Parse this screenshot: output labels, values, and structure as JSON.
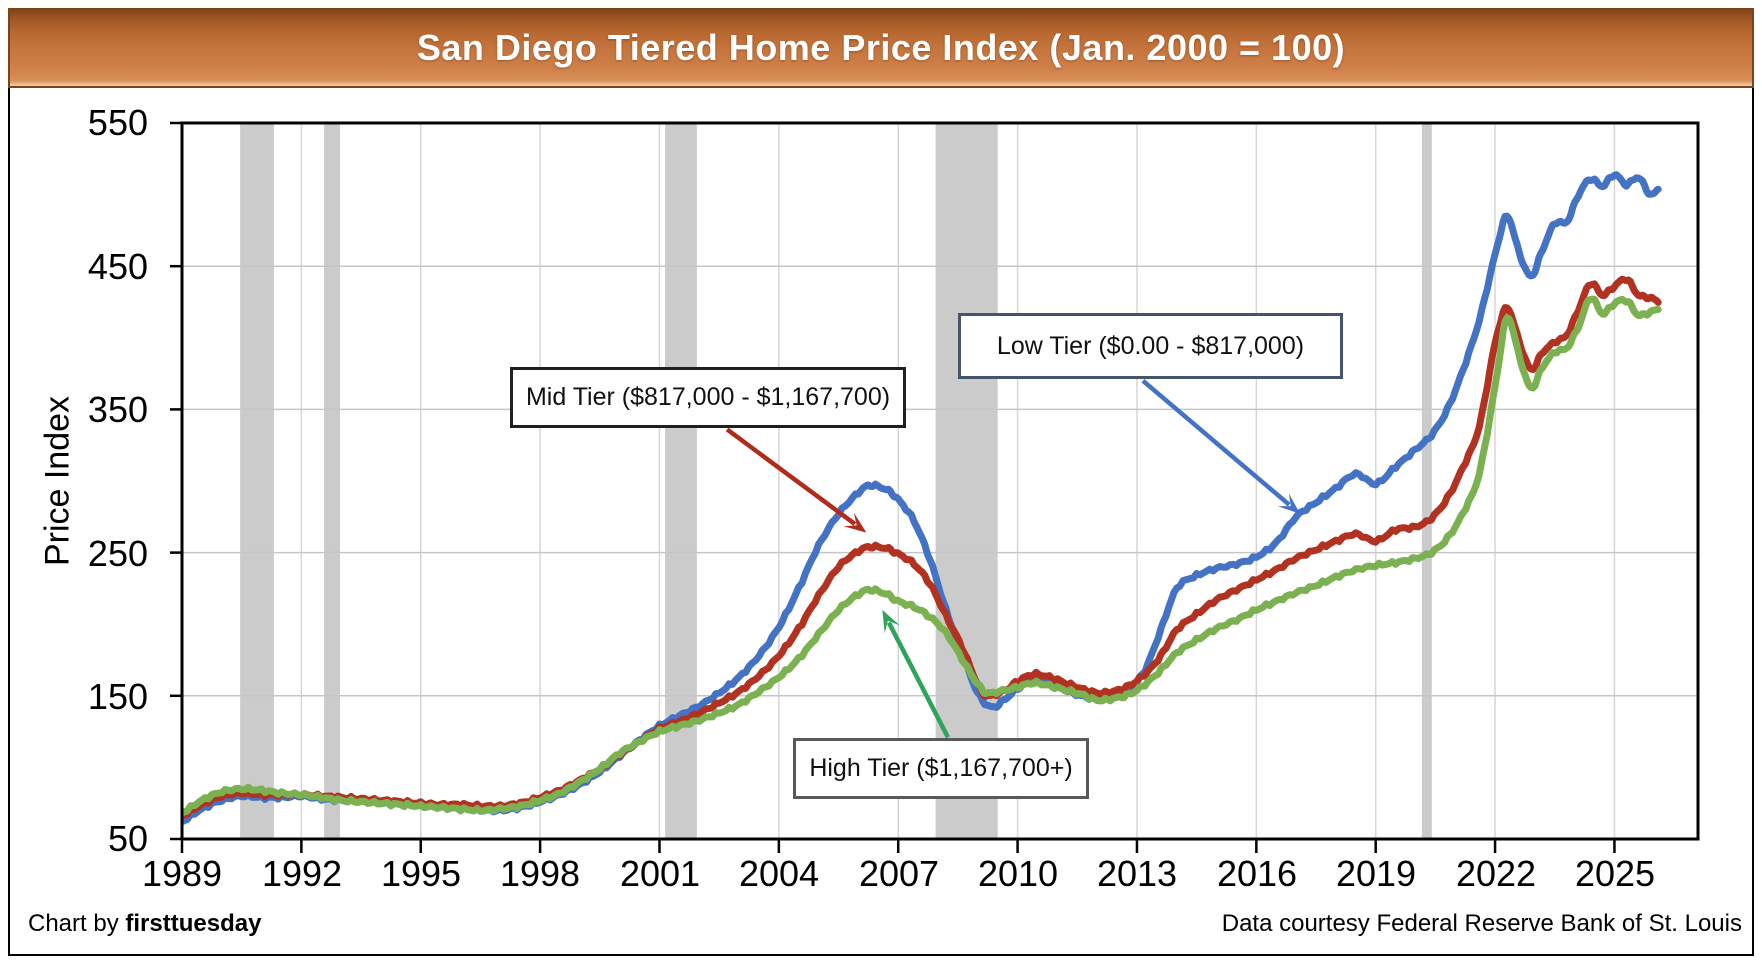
{
  "title": "San Diego Tiered Home Price Index (Jan. 2000 = 100)",
  "footer": {
    "left_prefix": "Chart by ",
    "left_brand": "firsttuesday",
    "right": "Data courtesy Federal Reserve Bank of St. Louis"
  },
  "chart_data": {
    "type": "line",
    "title": "San Diego Tiered Home Price Index (Jan. 2000 = 100)",
    "xlabel": "",
    "ylabel": "Price Index",
    "xlim": [
      1989,
      2027.1
    ],
    "ylim": [
      50,
      550
    ],
    "x_ticks": [
      1989,
      1992,
      1995,
      1998,
      2001,
      2004,
      2007,
      2010,
      2013,
      2016,
      2019,
      2022,
      2025
    ],
    "y_ticks": [
      50,
      150,
      250,
      350,
      450,
      550
    ],
    "grid": true,
    "legend_position": "annotation-callouts",
    "recession_bands": [
      [
        1990.46,
        1991.31
      ],
      [
        1992.57,
        1992.97
      ],
      [
        2001.14,
        2001.94
      ],
      [
        2007.94,
        2009.5
      ],
      [
        2020.16,
        2020.41
      ]
    ],
    "colors": {
      "band": "#CBCBCB",
      "grid_h": "#C6C6C6",
      "grid_v": "#D6D6D6",
      "axis": "#000000"
    },
    "series": [
      {
        "name": "Low Tier ($0.00 - $817,000)",
        "color": "#4472C4",
        "points": [
          [
            1989,
            62
          ],
          [
            1989.5,
            71
          ],
          [
            1990,
            77
          ],
          [
            1990.5,
            80
          ],
          [
            1991,
            79
          ],
          [
            1991.5,
            79
          ],
          [
            1992,
            80
          ],
          [
            1992.5,
            78
          ],
          [
            1993,
            77
          ],
          [
            1993.5,
            76
          ],
          [
            1994,
            75
          ],
          [
            1994.5,
            74
          ],
          [
            1995,
            73
          ],
          [
            1995.5,
            72
          ],
          [
            1996,
            71
          ],
          [
            1996.5,
            70
          ],
          [
            1997,
            70
          ],
          [
            1997.5,
            72
          ],
          [
            1998,
            76
          ],
          [
            1998.5,
            81
          ],
          [
            1999,
            88
          ],
          [
            1999.5,
            97
          ],
          [
            2000,
            108
          ],
          [
            2000.5,
            119
          ],
          [
            2001,
            129
          ],
          [
            2001.5,
            136
          ],
          [
            2002,
            143
          ],
          [
            2002.5,
            152
          ],
          [
            2003,
            163
          ],
          [
            2003.5,
            178
          ],
          [
            2004,
            198
          ],
          [
            2004.5,
            225
          ],
          [
            2005,
            255
          ],
          [
            2005.5,
            277
          ],
          [
            2006,
            292
          ],
          [
            2006.3,
            297
          ],
          [
            2006.7,
            294
          ],
          [
            2007,
            287
          ],
          [
            2007.4,
            272
          ],
          [
            2007.8,
            245
          ],
          [
            2008.2,
            210
          ],
          [
            2008.6,
            180
          ],
          [
            2009,
            152
          ],
          [
            2009.35,
            142
          ],
          [
            2009.7,
            148
          ],
          [
            2010,
            155
          ],
          [
            2010.4,
            161
          ],
          [
            2010.8,
            158
          ],
          [
            2011.2,
            154
          ],
          [
            2011.6,
            150
          ],
          [
            2012,
            148
          ],
          [
            2012.4,
            149
          ],
          [
            2012.8,
            155
          ],
          [
            2013.2,
            168
          ],
          [
            2013.6,
            196
          ],
          [
            2014,
            225
          ],
          [
            2014.5,
            234
          ],
          [
            2015,
            239
          ],
          [
            2015.5,
            242
          ],
          [
            2016,
            247
          ],
          [
            2016.5,
            257
          ],
          [
            2017,
            275
          ],
          [
            2017.5,
            285
          ],
          [
            2018,
            295
          ],
          [
            2018.5,
            305
          ],
          [
            2019,
            298
          ],
          [
            2019.5,
            310
          ],
          [
            2020,
            322
          ],
          [
            2020.4,
            332
          ],
          [
            2020.8,
            350
          ],
          [
            2021.2,
            378
          ],
          [
            2021.6,
            412
          ],
          [
            2022,
            458
          ],
          [
            2022.3,
            485
          ],
          [
            2022.6,
            460
          ],
          [
            2022.9,
            443
          ],
          [
            2023.2,
            462
          ],
          [
            2023.5,
            480
          ],
          [
            2023.8,
            481
          ],
          [
            2024.1,
            500
          ],
          [
            2024.4,
            511
          ],
          [
            2024.7,
            506
          ],
          [
            2025,
            514
          ],
          [
            2025.3,
            507
          ],
          [
            2025.6,
            512
          ],
          [
            2025.9,
            500
          ],
          [
            2026.1,
            504
          ]
        ]
      },
      {
        "name": "Mid Tier ($817,000 - $1,167,700)",
        "color": "#B23222",
        "points": [
          [
            1989,
            66
          ],
          [
            1989.5,
            74
          ],
          [
            1990,
            80
          ],
          [
            1990.5,
            82
          ],
          [
            1991,
            81
          ],
          [
            1991.5,
            81
          ],
          [
            1992,
            81
          ],
          [
            1992.5,
            80
          ],
          [
            1993,
            79
          ],
          [
            1993.5,
            78
          ],
          [
            1994,
            77
          ],
          [
            1994.5,
            76
          ],
          [
            1995,
            75
          ],
          [
            1995.5,
            74
          ],
          [
            1996,
            74
          ],
          [
            1996.5,
            73
          ],
          [
            1997,
            73
          ],
          [
            1997.5,
            75
          ],
          [
            1998,
            79
          ],
          [
            1998.5,
            84
          ],
          [
            1999,
            91
          ],
          [
            1999.5,
            99
          ],
          [
            2000,
            109
          ],
          [
            2000.5,
            118
          ],
          [
            2001,
            127
          ],
          [
            2001.5,
            132
          ],
          [
            2002,
            138
          ],
          [
            2002.5,
            145
          ],
          [
            2003,
            153
          ],
          [
            2003.5,
            164
          ],
          [
            2004,
            178
          ],
          [
            2004.5,
            197
          ],
          [
            2005,
            220
          ],
          [
            2005.5,
            240
          ],
          [
            2006,
            251
          ],
          [
            2006.3,
            254
          ],
          [
            2006.7,
            253
          ],
          [
            2007,
            249
          ],
          [
            2007.4,
            242
          ],
          [
            2007.8,
            228
          ],
          [
            2008.2,
            206
          ],
          [
            2008.6,
            184
          ],
          [
            2009,
            158
          ],
          [
            2009.25,
            150
          ],
          [
            2009.7,
            154
          ],
          [
            2010,
            160
          ],
          [
            2010.4,
            165
          ],
          [
            2010.8,
            163
          ],
          [
            2011.2,
            159
          ],
          [
            2011.6,
            155
          ],
          [
            2012,
            152
          ],
          [
            2012.4,
            153
          ],
          [
            2012.8,
            157
          ],
          [
            2013.2,
            165
          ],
          [
            2013.6,
            178
          ],
          [
            2014,
            196
          ],
          [
            2014.5,
            207
          ],
          [
            2015,
            217
          ],
          [
            2015.5,
            224
          ],
          [
            2016,
            231
          ],
          [
            2016.5,
            238
          ],
          [
            2017,
            246
          ],
          [
            2017.5,
            252
          ],
          [
            2018,
            258
          ],
          [
            2018.5,
            263
          ],
          [
            2019,
            258
          ],
          [
            2019.5,
            266
          ],
          [
            2020,
            268
          ],
          [
            2020.4,
            274
          ],
          [
            2020.8,
            288
          ],
          [
            2021.2,
            310
          ],
          [
            2021.6,
            338
          ],
          [
            2022,
            396
          ],
          [
            2022.3,
            421
          ],
          [
            2022.6,
            398
          ],
          [
            2022.9,
            378
          ],
          [
            2023.2,
            390
          ],
          [
            2023.5,
            397
          ],
          [
            2023.8,
            402
          ],
          [
            2024.1,
            420
          ],
          [
            2024.4,
            438
          ],
          [
            2024.7,
            430
          ],
          [
            2025,
            436
          ],
          [
            2025.3,
            441
          ],
          [
            2025.6,
            430
          ],
          [
            2025.9,
            428
          ],
          [
            2026.1,
            425
          ]
        ]
      },
      {
        "name": "High Tier ($1,167,700+)",
        "color": "#7CB152",
        "points": [
          [
            1989,
            68
          ],
          [
            1989.5,
            77
          ],
          [
            1990,
            83
          ],
          [
            1990.5,
            85
          ],
          [
            1991,
            84
          ],
          [
            1991.5,
            82
          ],
          [
            1992,
            81
          ],
          [
            1992.5,
            79
          ],
          [
            1993,
            77
          ],
          [
            1993.5,
            76
          ],
          [
            1994,
            75
          ],
          [
            1994.5,
            74
          ],
          [
            1995,
            73
          ],
          [
            1995.5,
            72
          ],
          [
            1996,
            71
          ],
          [
            1996.5,
            70
          ],
          [
            1997,
            71
          ],
          [
            1997.5,
            73
          ],
          [
            1998,
            77
          ],
          [
            1998.5,
            82
          ],
          [
            1999,
            90
          ],
          [
            1999.5,
            99
          ],
          [
            2000,
            110
          ],
          [
            2000.5,
            118
          ],
          [
            2001,
            125
          ],
          [
            2001.5,
            129
          ],
          [
            2002,
            133
          ],
          [
            2002.5,
            138
          ],
          [
            2003,
            144
          ],
          [
            2003.5,
            153
          ],
          [
            2004,
            163
          ],
          [
            2004.5,
            176
          ],
          [
            2005,
            193
          ],
          [
            2005.5,
            210
          ],
          [
            2006,
            221
          ],
          [
            2006.3,
            224
          ],
          [
            2006.7,
            221
          ],
          [
            2007,
            216
          ],
          [
            2007.4,
            212
          ],
          [
            2007.8,
            205
          ],
          [
            2008.2,
            194
          ],
          [
            2008.6,
            176
          ],
          [
            2009,
            158
          ],
          [
            2009.25,
            152
          ],
          [
            2009.7,
            154
          ],
          [
            2010,
            156
          ],
          [
            2010.4,
            159
          ],
          [
            2010.8,
            157
          ],
          [
            2011.2,
            154
          ],
          [
            2011.6,
            151
          ],
          [
            2012,
            147
          ],
          [
            2012.4,
            148
          ],
          [
            2012.8,
            151
          ],
          [
            2013.2,
            158
          ],
          [
            2013.6,
            168
          ],
          [
            2014,
            180
          ],
          [
            2014.5,
            189
          ],
          [
            2015,
            197
          ],
          [
            2015.5,
            203
          ],
          [
            2016,
            210
          ],
          [
            2016.5,
            216
          ],
          [
            2017,
            222
          ],
          [
            2017.5,
            227
          ],
          [
            2018,
            233
          ],
          [
            2018.5,
            238
          ],
          [
            2019,
            241
          ],
          [
            2019.5,
            243
          ],
          [
            2020,
            246
          ],
          [
            2020.4,
            250
          ],
          [
            2020.8,
            260
          ],
          [
            2021.2,
            278
          ],
          [
            2021.6,
            305
          ],
          [
            2022,
            366
          ],
          [
            2022.3,
            414
          ],
          [
            2022.6,
            388
          ],
          [
            2022.9,
            365
          ],
          [
            2023.2,
            380
          ],
          [
            2023.5,
            390
          ],
          [
            2023.8,
            393
          ],
          [
            2024.1,
            408
          ],
          [
            2024.4,
            428
          ],
          [
            2024.7,
            417
          ],
          [
            2025,
            424
          ],
          [
            2025.3,
            426
          ],
          [
            2025.6,
            416
          ],
          [
            2025.9,
            418
          ],
          [
            2026.1,
            420
          ]
        ]
      }
    ],
    "annotations": [
      {
        "label": "Mid Tier ($817,000 - $1,167,700)",
        "border": "#1F1F1F",
        "arrow_color": "#B02B1C",
        "arrow_from": [
          2002.7,
          336
        ],
        "arrow_to": [
          2006.2,
          264
        ]
      },
      {
        "label": "Low Tier ($0.00 - $817,000)",
        "border": "#44546A",
        "arrow_color": "#4472C4",
        "arrow_from": [
          2013.15,
          370
        ],
        "arrow_to": [
          2017.1,
          277
        ]
      },
      {
        "label": "High Tier ($1,167,700+)",
        "border": "#595959",
        "arrow_color": "#2EA45B",
        "arrow_from": [
          2008.25,
          121
        ],
        "arrow_to": [
          2006.6,
          210
        ]
      }
    ]
  },
  "y_tick_labels": {
    "t550": "550",
    "t450": "450",
    "t350": "350",
    "t250": "250",
    "t150": "150",
    "t50": "50"
  }
}
